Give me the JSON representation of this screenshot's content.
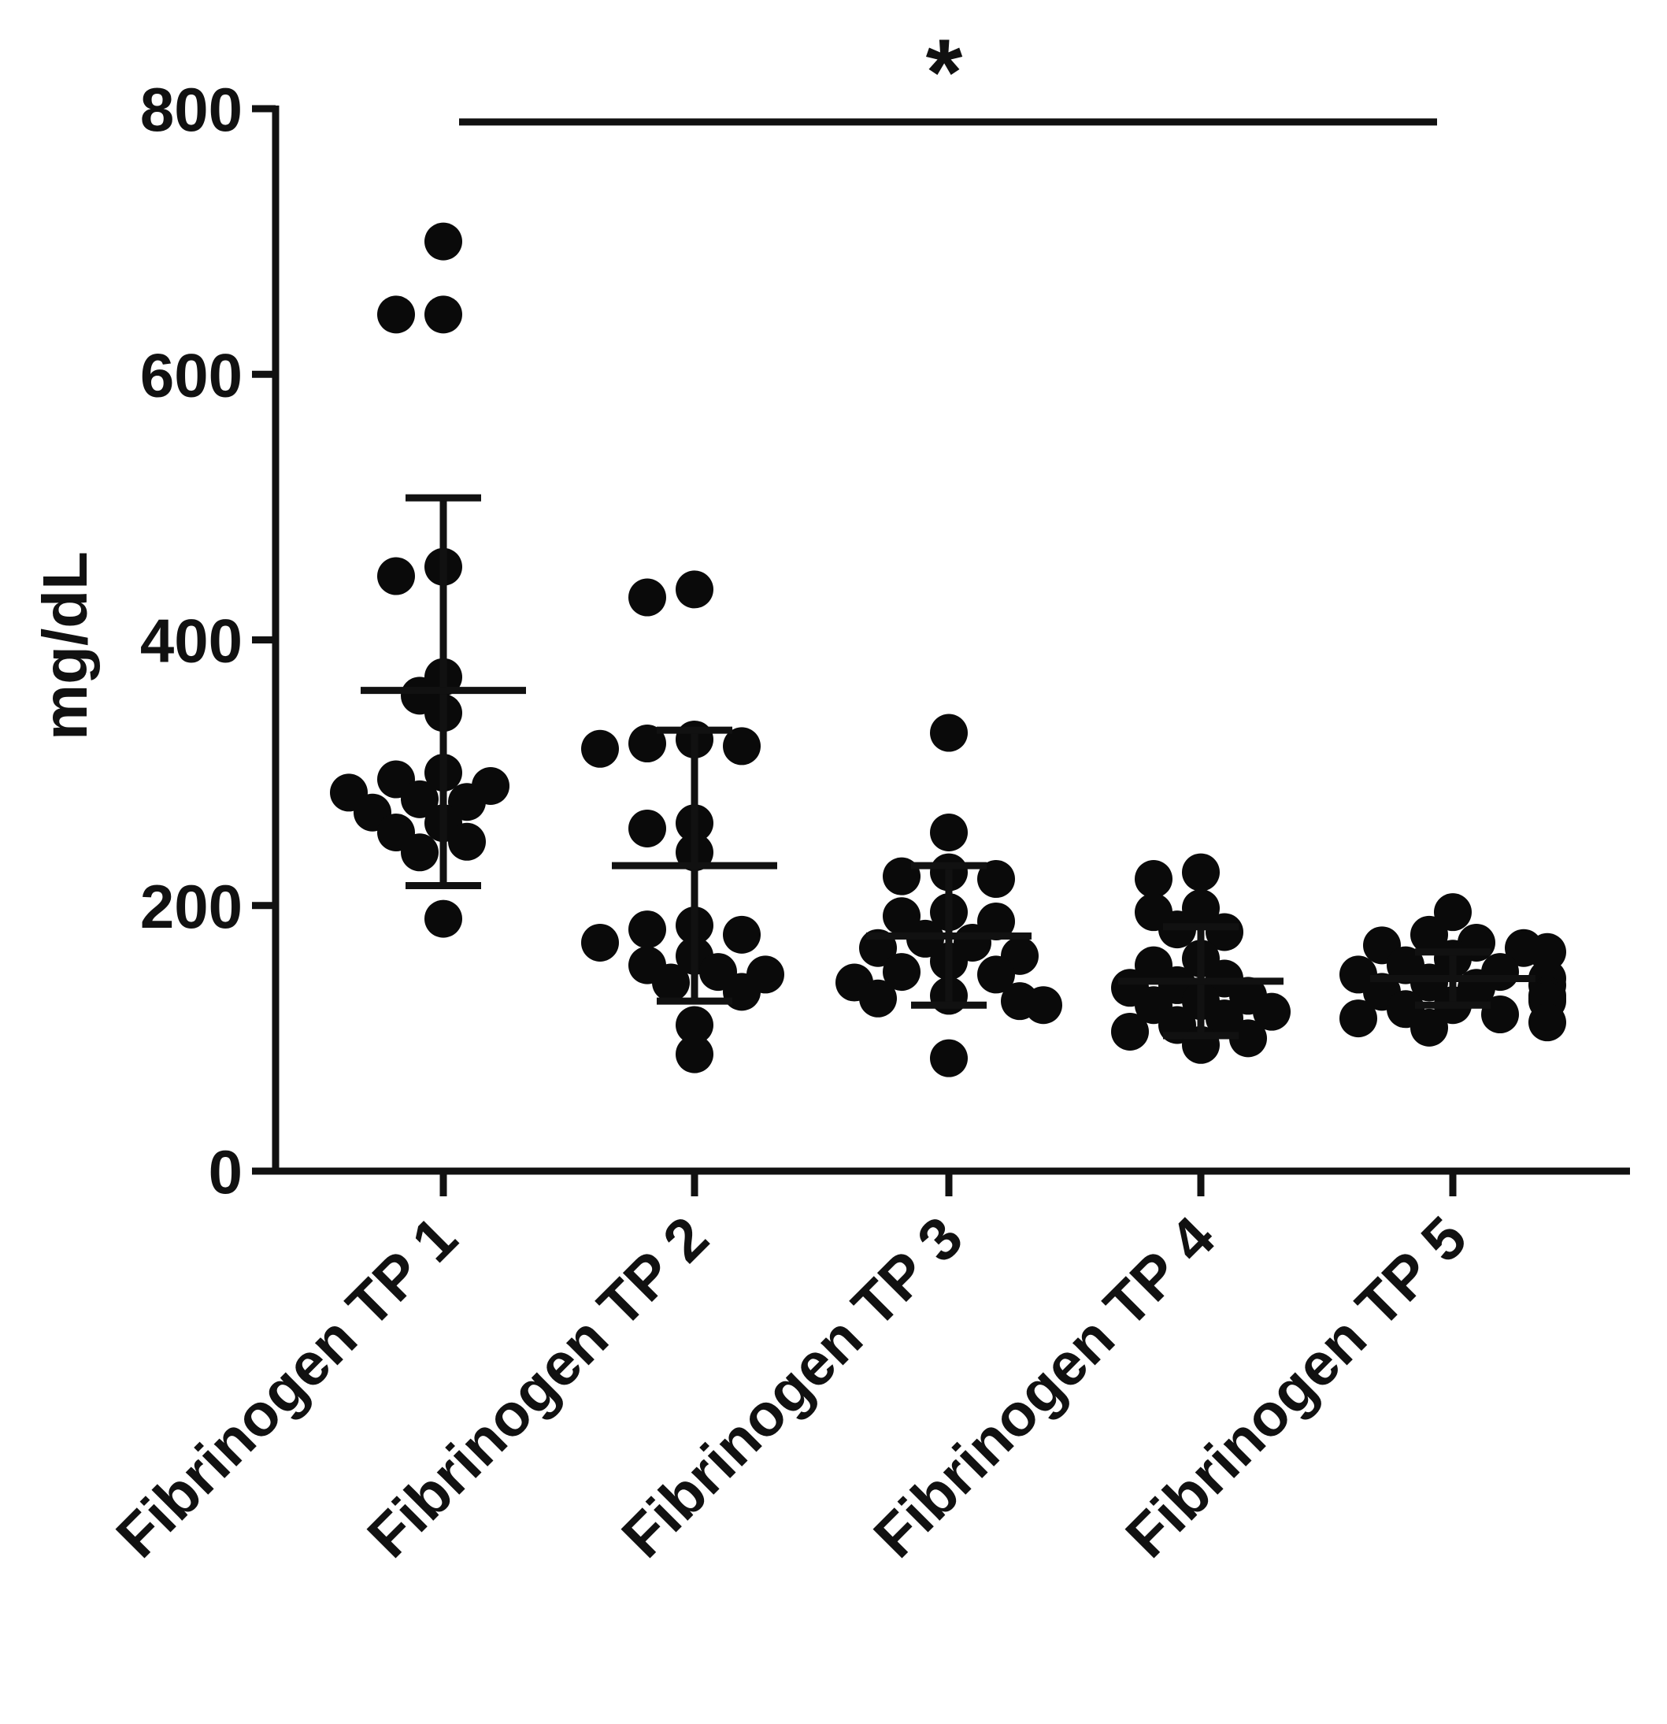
{
  "chart_data": {
    "type": "scatter",
    "title": "",
    "xlabel": "",
    "ylabel": "mg/dL",
    "ylim": [
      0,
      800
    ],
    "yticks": [
      0,
      200,
      400,
      600,
      800
    ],
    "grid": false,
    "categories": [
      "Fibrinogen TP 1",
      "Fibrinogen TP 2",
      "Fibrinogen TP 3",
      "Fibrinogen TP 4",
      "Fibrinogen TP 5"
    ],
    "series": [
      {
        "category": "Fibrinogen TP 1",
        "mean": 362,
        "sd_low": 215,
        "sd_high": 507,
        "points": [
          700,
          645,
          645,
          455,
          448,
          372,
          358,
          345,
          300,
          295,
          290,
          285,
          280,
          278,
          270,
          262,
          255,
          248,
          240,
          190
        ]
      },
      {
        "category": "Fibrinogen TP 2",
        "mean": 230,
        "sd_low": 128,
        "sd_high": 332,
        "points": [
          438,
          432,
          325,
          322,
          320,
          318,
          262,
          258,
          240,
          185,
          182,
          178,
          172,
          162,
          155,
          150,
          148,
          142,
          135,
          110,
          88
        ]
      },
      {
        "category": "Fibrinogen TP 3",
        "mean": 177,
        "sd_low": 125,
        "sd_high": 230,
        "points": [
          330,
          255,
          225,
          222,
          220,
          195,
          192,
          188,
          175,
          172,
          168,
          162,
          158,
          150,
          148,
          142,
          132,
          130,
          128,
          125,
          85
        ]
      },
      {
        "category": "Fibrinogen TP 4",
        "mean": 143,
        "sd_low": 102,
        "sd_high": 184,
        "points": [
          225,
          220,
          198,
          195,
          182,
          180,
          160,
          155,
          145,
          140,
          138,
          132,
          128,
          125,
          120,
          115,
          110,
          105,
          100,
          95
        ]
      },
      {
        "category": "Fibrinogen TP 5",
        "mean": 145,
        "sd_low": 125,
        "sd_high": 165,
        "points": [
          195,
          178,
          172,
          170,
          168,
          165,
          160,
          155,
          150,
          148,
          145,
          142,
          140,
          138,
          135,
          132,
          130,
          128,
          125,
          122,
          118,
          115,
          112,
          108
        ]
      }
    ],
    "annotations": [
      {
        "text": "*",
        "type": "significance-bar",
        "from": "Fibrinogen TP 1",
        "to": "Fibrinogen TP 5",
        "y": 790
      }
    ]
  }
}
